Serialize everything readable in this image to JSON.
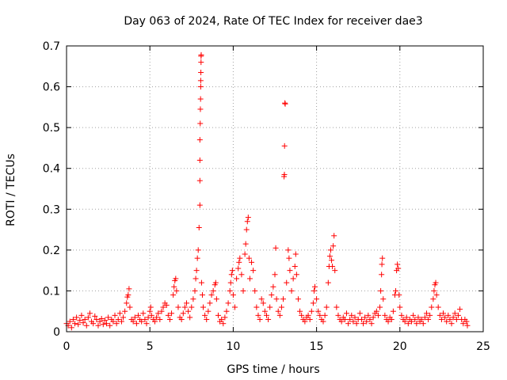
{
  "chart_data": {
    "type": "scatter",
    "title": "Day 063 of 2024, Rate Of TEC Index for receiver dae3",
    "xlabel": "GPS time / hours",
    "ylabel": "ROTI / TECUs",
    "xlim": [
      0,
      25
    ],
    "ylim": [
      0,
      0.7
    ],
    "xticks": [
      0,
      5,
      10,
      15,
      20,
      25
    ],
    "yticks": [
      0,
      0.1,
      0.2,
      0.3,
      0.4,
      0.5,
      0.6,
      0.7
    ],
    "grid": true,
    "marker": "+",
    "marker_color": "#ff0000",
    "points": [
      [
        0.0,
        0.02
      ],
      [
        0.1,
        0.015
      ],
      [
        0.2,
        0.025
      ],
      [
        0.3,
        0.01
      ],
      [
        0.4,
        0.03
      ],
      [
        0.5,
        0.02
      ],
      [
        0.6,
        0.035
      ],
      [
        0.7,
        0.018
      ],
      [
        0.8,
        0.028
      ],
      [
        0.9,
        0.04
      ],
      [
        1.0,
        0.022
      ],
      [
        1.1,
        0.03
      ],
      [
        1.2,
        0.015
      ],
      [
        1.3,
        0.035
      ],
      [
        1.4,
        0.045
      ],
      [
        1.5,
        0.025
      ],
      [
        1.6,
        0.02
      ],
      [
        1.7,
        0.038
      ],
      [
        1.8,
        0.03
      ],
      [
        1.9,
        0.015
      ],
      [
        2.0,
        0.025
      ],
      [
        2.1,
        0.032
      ],
      [
        2.2,
        0.018
      ],
      [
        2.3,
        0.028
      ],
      [
        2.4,
        0.02
      ],
      [
        2.5,
        0.035
      ],
      [
        2.6,
        0.015
      ],
      [
        2.7,
        0.03
      ],
      [
        2.8,
        0.025
      ],
      [
        2.9,
        0.04
      ],
      [
        3.0,
        0.02
      ],
      [
        3.1,
        0.03
      ],
      [
        3.2,
        0.045
      ],
      [
        3.3,
        0.025
      ],
      [
        3.4,
        0.035
      ],
      [
        3.5,
        0.05
      ],
      [
        3.6,
        0.07
      ],
      [
        3.65,
        0.085
      ],
      [
        3.7,
        0.09
      ],
      [
        3.75,
        0.105
      ],
      [
        3.8,
        0.06
      ],
      [
        3.9,
        0.03
      ],
      [
        4.0,
        0.025
      ],
      [
        4.1,
        0.035
      ],
      [
        4.2,
        0.02
      ],
      [
        4.3,
        0.04
      ],
      [
        4.4,
        0.03
      ],
      [
        4.5,
        0.025
      ],
      [
        4.6,
        0.045
      ],
      [
        4.7,
        0.03
      ],
      [
        4.8,
        0.02
      ],
      [
        4.9,
        0.035
      ],
      [
        5.0,
        0.05
      ],
      [
        5.05,
        0.06
      ],
      [
        5.1,
        0.04
      ],
      [
        5.2,
        0.03
      ],
      [
        5.3,
        0.025
      ],
      [
        5.4,
        0.035
      ],
      [
        5.5,
        0.045
      ],
      [
        5.6,
        0.03
      ],
      [
        5.7,
        0.05
      ],
      [
        5.8,
        0.06
      ],
      [
        5.9,
        0.07
      ],
      [
        6.0,
        0.065
      ],
      [
        6.1,
        0.04
      ],
      [
        6.2,
        0.03
      ],
      [
        6.3,
        0.045
      ],
      [
        6.4,
        0.09
      ],
      [
        6.45,
        0.11
      ],
      [
        6.5,
        0.125
      ],
      [
        6.55,
        0.13
      ],
      [
        6.6,
        0.1
      ],
      [
        6.7,
        0.06
      ],
      [
        6.8,
        0.035
      ],
      [
        6.9,
        0.03
      ],
      [
        7.0,
        0.045
      ],
      [
        7.1,
        0.06
      ],
      [
        7.2,
        0.07
      ],
      [
        7.3,
        0.05
      ],
      [
        7.4,
        0.035
      ],
      [
        7.5,
        0.06
      ],
      [
        7.6,
        0.08
      ],
      [
        7.7,
        0.1
      ],
      [
        7.75,
        0.13
      ],
      [
        7.8,
        0.15
      ],
      [
        7.85,
        0.18
      ],
      [
        7.9,
        0.2
      ],
      [
        7.95,
        0.255
      ],
      [
        8.0,
        0.31
      ],
      [
        8.0,
        0.37
      ],
      [
        8.0,
        0.42
      ],
      [
        8.0,
        0.47
      ],
      [
        8.02,
        0.51
      ],
      [
        8.03,
        0.545
      ],
      [
        8.04,
        0.57
      ],
      [
        8.05,
        0.6
      ],
      [
        8.05,
        0.615
      ],
      [
        8.06,
        0.635
      ],
      [
        8.07,
        0.66
      ],
      [
        8.07,
        0.675
      ],
      [
        8.08,
        0.678
      ],
      [
        8.1,
        0.12
      ],
      [
        8.15,
        0.09
      ],
      [
        8.2,
        0.06
      ],
      [
        8.3,
        0.04
      ],
      [
        8.4,
        0.03
      ],
      [
        8.5,
        0.05
      ],
      [
        8.6,
        0.07
      ],
      [
        8.7,
        0.09
      ],
      [
        8.8,
        0.1
      ],
      [
        8.9,
        0.115
      ],
      [
        8.95,
        0.12
      ],
      [
        9.0,
        0.08
      ],
      [
        9.1,
        0.04
      ],
      [
        9.2,
        0.025
      ],
      [
        9.3,
        0.03
      ],
      [
        9.4,
        0.02
      ],
      [
        9.5,
        0.035
      ],
      [
        9.6,
        0.05
      ],
      [
        9.7,
        0.07
      ],
      [
        9.8,
        0.1
      ],
      [
        9.85,
        0.12
      ],
      [
        9.9,
        0.14
      ],
      [
        9.95,
        0.15
      ],
      [
        10.0,
        0.09
      ],
      [
        10.1,
        0.06
      ],
      [
        10.2,
        0.13
      ],
      [
        10.3,
        0.155
      ],
      [
        10.35,
        0.17
      ],
      [
        10.4,
        0.18
      ],
      [
        10.5,
        0.14
      ],
      [
        10.6,
        0.1
      ],
      [
        10.7,
        0.19
      ],
      [
        10.75,
        0.215
      ],
      [
        10.8,
        0.25
      ],
      [
        10.85,
        0.27
      ],
      [
        10.9,
        0.28
      ],
      [
        10.95,
        0.18
      ],
      [
        11.0,
        0.13
      ],
      [
        11.1,
        0.17
      ],
      [
        11.2,
        0.15
      ],
      [
        11.3,
        0.1
      ],
      [
        11.4,
        0.06
      ],
      [
        11.5,
        0.04
      ],
      [
        11.6,
        0.03
      ],
      [
        11.7,
        0.08
      ],
      [
        11.8,
        0.07
      ],
      [
        11.9,
        0.05
      ],
      [
        12.0,
        0.04
      ],
      [
        12.1,
        0.03
      ],
      [
        12.2,
        0.06
      ],
      [
        12.3,
        0.09
      ],
      [
        12.4,
        0.11
      ],
      [
        12.5,
        0.14
      ],
      [
        12.55,
        0.205
      ],
      [
        12.6,
        0.08
      ],
      [
        12.7,
        0.05
      ],
      [
        12.8,
        0.04
      ],
      [
        12.9,
        0.06
      ],
      [
        13.0,
        0.08
      ],
      [
        13.05,
        0.38
      ],
      [
        13.07,
        0.385
      ],
      [
        13.08,
        0.455
      ],
      [
        13.1,
        0.56
      ],
      [
        13.12,
        0.558
      ],
      [
        13.2,
        0.12
      ],
      [
        13.3,
        0.2
      ],
      [
        13.35,
        0.18
      ],
      [
        13.4,
        0.15
      ],
      [
        13.5,
        0.1
      ],
      [
        13.6,
        0.13
      ],
      [
        13.7,
        0.16
      ],
      [
        13.75,
        0.19
      ],
      [
        13.8,
        0.14
      ],
      [
        13.9,
        0.08
      ],
      [
        14.0,
        0.05
      ],
      [
        14.1,
        0.04
      ],
      [
        14.2,
        0.03
      ],
      [
        14.3,
        0.025
      ],
      [
        14.4,
        0.035
      ],
      [
        14.5,
        0.04
      ],
      [
        14.6,
        0.03
      ],
      [
        14.7,
        0.05
      ],
      [
        14.8,
        0.07
      ],
      [
        14.85,
        0.1
      ],
      [
        14.9,
        0.11
      ],
      [
        15.0,
        0.08
      ],
      [
        15.1,
        0.05
      ],
      [
        15.2,
        0.04
      ],
      [
        15.3,
        0.03
      ],
      [
        15.4,
        0.025
      ],
      [
        15.5,
        0.04
      ],
      [
        15.6,
        0.06
      ],
      [
        15.7,
        0.12
      ],
      [
        15.75,
        0.16
      ],
      [
        15.8,
        0.185
      ],
      [
        15.85,
        0.2
      ],
      [
        15.9,
        0.175
      ],
      [
        15.95,
        0.16
      ],
      [
        16.0,
        0.21
      ],
      [
        16.05,
        0.235
      ],
      [
        16.1,
        0.15
      ],
      [
        16.2,
        0.06
      ],
      [
        16.3,
        0.04
      ],
      [
        16.4,
        0.03
      ],
      [
        16.5,
        0.025
      ],
      [
        16.6,
        0.035
      ],
      [
        16.7,
        0.03
      ],
      [
        16.8,
        0.045
      ],
      [
        16.9,
        0.02
      ],
      [
        17.0,
        0.03
      ],
      [
        17.1,
        0.04
      ],
      [
        17.2,
        0.025
      ],
      [
        17.3,
        0.035
      ],
      [
        17.4,
        0.02
      ],
      [
        17.5,
        0.03
      ],
      [
        17.6,
        0.045
      ],
      [
        17.7,
        0.03
      ],
      [
        17.8,
        0.02
      ],
      [
        17.9,
        0.035
      ],
      [
        18.0,
        0.025
      ],
      [
        18.1,
        0.04
      ],
      [
        18.2,
        0.03
      ],
      [
        18.3,
        0.02
      ],
      [
        18.4,
        0.035
      ],
      [
        18.5,
        0.045
      ],
      [
        18.6,
        0.05
      ],
      [
        18.7,
        0.04
      ],
      [
        18.8,
        0.06
      ],
      [
        18.85,
        0.1
      ],
      [
        18.9,
        0.14
      ],
      [
        18.92,
        0.165
      ],
      [
        18.95,
        0.18
      ],
      [
        19.0,
        0.08
      ],
      [
        19.1,
        0.04
      ],
      [
        19.2,
        0.03
      ],
      [
        19.3,
        0.025
      ],
      [
        19.4,
        0.035
      ],
      [
        19.5,
        0.03
      ],
      [
        19.6,
        0.05
      ],
      [
        19.7,
        0.09
      ],
      [
        19.75,
        0.1
      ],
      [
        19.8,
        0.15
      ],
      [
        19.85,
        0.165
      ],
      [
        19.9,
        0.155
      ],
      [
        19.95,
        0.09
      ],
      [
        20.0,
        0.06
      ],
      [
        20.1,
        0.04
      ],
      [
        20.2,
        0.03
      ],
      [
        20.3,
        0.025
      ],
      [
        20.4,
        0.035
      ],
      [
        20.5,
        0.02
      ],
      [
        20.6,
        0.03
      ],
      [
        20.7,
        0.025
      ],
      [
        20.8,
        0.04
      ],
      [
        20.9,
        0.03
      ],
      [
        21.0,
        0.02
      ],
      [
        21.1,
        0.035
      ],
      [
        21.2,
        0.025
      ],
      [
        21.3,
        0.03
      ],
      [
        21.4,
        0.02
      ],
      [
        21.5,
        0.035
      ],
      [
        21.6,
        0.045
      ],
      [
        21.7,
        0.03
      ],
      [
        21.8,
        0.04
      ],
      [
        21.9,
        0.06
      ],
      [
        22.0,
        0.08
      ],
      [
        22.05,
        0.1
      ],
      [
        22.1,
        0.115
      ],
      [
        22.15,
        0.12
      ],
      [
        22.2,
        0.09
      ],
      [
        22.3,
        0.06
      ],
      [
        22.4,
        0.04
      ],
      [
        22.5,
        0.03
      ],
      [
        22.6,
        0.045
      ],
      [
        22.7,
        0.035
      ],
      [
        22.8,
        0.025
      ],
      [
        22.9,
        0.04
      ],
      [
        23.0,
        0.03
      ],
      [
        23.1,
        0.02
      ],
      [
        23.2,
        0.035
      ],
      [
        23.3,
        0.045
      ],
      [
        23.4,
        0.03
      ],
      [
        23.5,
        0.04
      ],
      [
        23.6,
        0.055
      ],
      [
        23.7,
        0.03
      ],
      [
        23.8,
        0.02
      ],
      [
        23.9,
        0.03
      ],
      [
        24.0,
        0.025
      ],
      [
        24.05,
        0.015
      ]
    ]
  }
}
